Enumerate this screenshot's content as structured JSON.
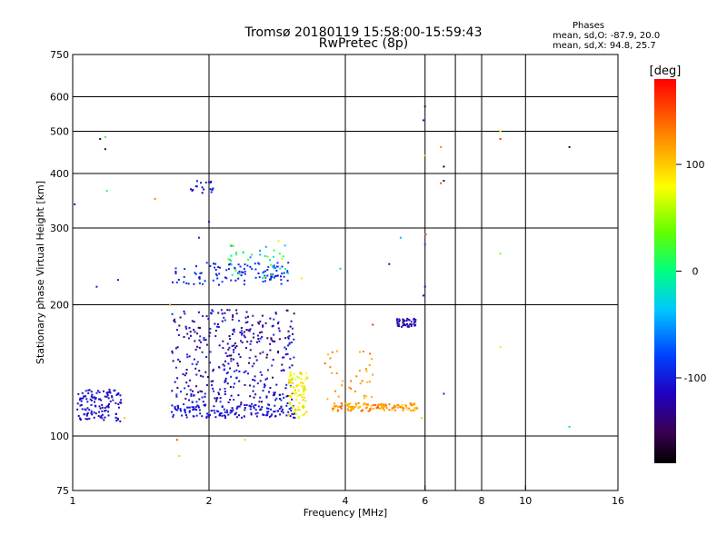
{
  "chart_data": {
    "type": "scatter",
    "title": "Tromsø 20180119 15:58:00-15:59:43",
    "subtitle": "RwPretec (8p)",
    "xlabel": "Frequency [MHz]",
    "ylabel": "Stationary phase Virtual Height [km]",
    "x_scale": "log",
    "y_scale": "log",
    "xlim": [
      1,
      16
    ],
    "ylim": [
      75,
      750
    ],
    "x_ticks": [
      1,
      2,
      4,
      6,
      8,
      10,
      16
    ],
    "y_ticks": [
      75,
      100,
      200,
      300,
      400,
      500,
      600,
      750
    ],
    "x_grid": [
      1,
      2,
      4,
      6,
      7,
      8,
      10
    ],
    "y_grid": [
      100,
      200,
      300,
      400,
      500,
      600
    ],
    "grid": true,
    "colorbar": {
      "label": "[deg]",
      "ticks": [
        100,
        0,
        -100
      ],
      "range": [
        -180,
        180
      ]
    },
    "stats": {
      "heading": "Phases",
      "line_o": "mean, sd,O: -87.9, 20.0",
      "line_x": "mean, sd,X:  94.8, 25.7"
    },
    "clusters": [
      {
        "f_range": [
          1.02,
          1.28
        ],
        "h_range": [
          108,
          128
        ],
        "phase": [
          -120,
          -100
        ],
        "count": 120
      },
      {
        "f_range": [
          1.65,
          3.1
        ],
        "h_range": [
          110,
          118
        ],
        "phase": [
          -115,
          -95
        ],
        "count": 160
      },
      {
        "f_range": [
          1.65,
          3.1
        ],
        "h_range": [
          118,
          195
        ],
        "phase": [
          -150,
          -80
        ],
        "count": 380
      },
      {
        "f_range": [
          1.65,
          3.0
        ],
        "h_range": [
          222,
          250
        ],
        "phase": [
          -110,
          -75
        ],
        "count": 110
      },
      {
        "f_range": [
          2.2,
          3.0
        ],
        "h_range": [
          230,
          275
        ],
        "phase": [
          -60,
          40
        ],
        "count": 40
      },
      {
        "f_range": [
          3.0,
          3.3
        ],
        "h_range": [
          110,
          140
        ],
        "phase": [
          60,
          110
        ],
        "count": 90
      },
      {
        "f_range": [
          3.7,
          5.8
        ],
        "h_range": [
          114,
          119
        ],
        "phase": [
          95,
          150
        ],
        "count": 130
      },
      {
        "f_range": [
          3.6,
          4.6
        ],
        "h_range": [
          120,
          160
        ],
        "phase": [
          100,
          140
        ],
        "count": 35
      },
      {
        "f_range": [
          5.2,
          5.8
        ],
        "h_range": [
          178,
          186
        ],
        "phase": [
          -140,
          -95
        ],
        "count": 45
      },
      {
        "f_range": [
          1.8,
          2.05
        ],
        "h_range": [
          360,
          385
        ],
        "phase": [
          -120,
          -90
        ],
        "count": 18
      }
    ],
    "points": [
      {
        "x": 1.01,
        "y": 340,
        "phase": -110
      },
      {
        "x": 1.15,
        "y": 480,
        "phase": -150
      },
      {
        "x": 1.18,
        "y": 455,
        "phase": -160
      },
      {
        "x": 1.18,
        "y": 485,
        "phase": 20
      },
      {
        "x": 1.19,
        "y": 365,
        "phase": 10
      },
      {
        "x": 1.13,
        "y": 220,
        "phase": -100
      },
      {
        "x": 1.26,
        "y": 228,
        "phase": -100
      },
      {
        "x": 1.3,
        "y": 110,
        "phase": 100
      },
      {
        "x": 1.52,
        "y": 350,
        "phase": 130
      },
      {
        "x": 1.7,
        "y": 98,
        "phase": 150
      },
      {
        "x": 1.72,
        "y": 90,
        "phase": 100
      },
      {
        "x": 2.4,
        "y": 98,
        "phase": 100
      },
      {
        "x": 1.64,
        "y": 200,
        "phase": 120
      },
      {
        "x": 2.0,
        "y": 310,
        "phase": -100
      },
      {
        "x": 1.9,
        "y": 285,
        "phase": -100
      },
      {
        "x": 3.2,
        "y": 230,
        "phase": 90
      },
      {
        "x": 3.9,
        "y": 242,
        "phase": -30
      },
      {
        "x": 4.6,
        "y": 180,
        "phase": 160
      },
      {
        "x": 5.0,
        "y": 248,
        "phase": -130
      },
      {
        "x": 5.3,
        "y": 285,
        "phase": -40
      },
      {
        "x": 5.95,
        "y": 210,
        "phase": -120
      },
      {
        "x": 6.0,
        "y": 220,
        "phase": -110
      },
      {
        "x": 6.0,
        "y": 275,
        "phase": -80
      },
      {
        "x": 6.02,
        "y": 290,
        "phase": 150
      },
      {
        "x": 5.95,
        "y": 530,
        "phase": -110
      },
      {
        "x": 6.0,
        "y": 570,
        "phase": -150
      },
      {
        "x": 6.0,
        "y": 440,
        "phase": 110
      },
      {
        "x": 6.5,
        "y": 460,
        "phase": 130
      },
      {
        "x": 6.5,
        "y": 380,
        "phase": 150
      },
      {
        "x": 6.6,
        "y": 385,
        "phase": -160
      },
      {
        "x": 6.6,
        "y": 415,
        "phase": -170
      },
      {
        "x": 6.6,
        "y": 125,
        "phase": -100
      },
      {
        "x": 5.9,
        "y": 110,
        "phase": 100
      },
      {
        "x": 8.8,
        "y": 480,
        "phase": 160
      },
      {
        "x": 8.8,
        "y": 500,
        "phase": 80
      },
      {
        "x": 8.8,
        "y": 262,
        "phase": 40
      },
      {
        "x": 8.8,
        "y": 160,
        "phase": 90
      },
      {
        "x": 12.5,
        "y": 460,
        "phase": -160
      },
      {
        "x": 12.5,
        "y": 105,
        "phase": -20
      },
      {
        "x": 2.9,
        "y": 255,
        "phase": 60
      },
      {
        "x": 2.85,
        "y": 280,
        "phase": 90
      }
    ]
  }
}
